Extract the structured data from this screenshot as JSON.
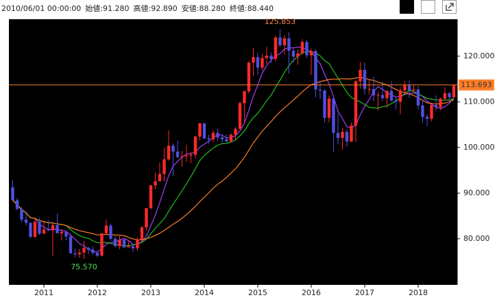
{
  "chart_data": {
    "type": "candlestick",
    "header": {
      "date": "2010/06/01 00:00:00",
      "fields": [
        {
          "label": "始値:",
          "value": "91.280"
        },
        {
          "label": "高値:",
          "value": "92.890"
        },
        {
          "label": "安値:",
          "value": "88.280"
        },
        {
          "label": "終値:",
          "value": "88.440"
        }
      ]
    },
    "open": [
      91.28,
      88.44,
      86.5,
      84.2,
      83.5,
      80.4,
      83.7,
      81.1,
      82.0,
      81.8,
      83.0,
      81.2,
      81.5,
      80.5,
      76.8,
      76.6,
      77.0,
      78.0,
      77.6,
      76.9,
      76.3,
      81.2,
      82.9,
      80.0,
      78.4,
      79.8,
      78.1,
      78.4,
      77.9,
      79.8,
      82.5,
      86.7,
      91.7,
      92.6,
      94.2,
      97.4,
      100.4,
      99.1,
      97.9,
      98.1,
      98.2,
      98.4,
      102.4,
      105.3,
      102.0,
      101.8,
      103.2,
      102.2,
      101.8,
      101.3,
      102.8,
      104.1,
      109.7,
      112.3,
      118.6,
      119.8,
      117.5,
      119.6,
      120.1,
      119.4,
      124.1,
      122.4,
      123.9,
      121.2,
      119.9,
      120.6,
      123.1,
      120.2,
      121.1,
      112.7,
      112.5,
      106.5,
      110.7,
      103.2,
      102.1,
      103.4,
      101.3,
      104.8,
      114.5,
      117.0,
      112.8,
      112.8,
      111.4,
      111.5,
      110.8,
      112.4,
      110.3,
      110.0,
      112.5,
      113.6,
      112.5,
      112.7,
      109.2,
      106.7,
      106.3,
      109.3,
      108.8,
      110.7,
      111.9,
      111.0
    ],
    "high": [
      92.89,
      88.9,
      87.0,
      86.0,
      83.6,
      84.4,
      84.5,
      83.6,
      84.0,
      83.3,
      85.5,
      82.2,
      81.7,
      80.9,
      77.9,
      77.8,
      79.5,
      78.3,
      78.3,
      77.3,
      81.2,
      84.2,
      83.3,
      80.6,
      80.6,
      79.9,
      79.6,
      78.9,
      80.3,
      82.8,
      86.8,
      91.8,
      94.5,
      96.7,
      99.9,
      103.7,
      100.9,
      101.5,
      99.2,
      100.6,
      99.0,
      102.6,
      105.4,
      105.4,
      102.8,
      103.8,
      104.1,
      102.8,
      102.8,
      103.1,
      104.5,
      110.1,
      112.5,
      118.9,
      121.8,
      120.8,
      120.5,
      122.0,
      120.8,
      124.4,
      125.853,
      124.6,
      125.3,
      121.7,
      121.5,
      123.8,
      123.6,
      121.7,
      121.5,
      114.5,
      112.7,
      111.4,
      110.9,
      107.5,
      104.3,
      104.1,
      105.5,
      114.8,
      118.7,
      118.6,
      114.9,
      115.5,
      112.2,
      114.4,
      112.5,
      114.5,
      111.1,
      113.3,
      114.5,
      114.7,
      113.8,
      113.4,
      110.5,
      107.3,
      109.6,
      111.4,
      110.9,
      113.2,
      112.2,
      113.7
    ],
    "low": [
      88.28,
      86.3,
      83.6,
      82.9,
      80.2,
      80.2,
      80.8,
      81.1,
      81.7,
      76.3,
      81.2,
      79.6,
      79.7,
      76.8,
      75.9,
      75.9,
      75.57,
      76.6,
      76.6,
      76.0,
      76.1,
      80.9,
      79.6,
      78.2,
      77.7,
      77.9,
      78.1,
      77.1,
      77.4,
      79.1,
      81.7,
      86.5,
      90.9,
      92.6,
      92.6,
      97.1,
      93.8,
      97.6,
      95.8,
      96.9,
      96.6,
      97.6,
      101.6,
      101.8,
      100.8,
      101.2,
      101.4,
      100.8,
      101.1,
      101.1,
      101.5,
      104.0,
      105.2,
      111.9,
      115.6,
      115.9,
      116.9,
      118.3,
      118.5,
      118.9,
      122.0,
      120.4,
      116.2,
      118.6,
      118.1,
      120.2,
      119.6,
      115.9,
      111.0,
      110.6,
      105.5,
      105.5,
      99.0,
      100.7,
      99.5,
      100.1,
      101.2,
      101.2,
      112.9,
      111.6,
      111.6,
      110.1,
      108.1,
      110.2,
      108.8,
      110.0,
      108.3,
      107.3,
      111.7,
      110.8,
      111.9,
      108.3,
      105.5,
      104.6,
      105.7,
      108.1,
      108.1,
      110.3,
      110.0,
      111.0
    ],
    "close": [
      88.44,
      86.5,
      84.2,
      83.5,
      80.4,
      83.7,
      81.1,
      82.0,
      81.8,
      83.0,
      81.2,
      81.5,
      80.5,
      76.8,
      76.6,
      77.0,
      78.0,
      77.6,
      76.9,
      76.3,
      81.2,
      82.9,
      80.0,
      78.4,
      79.8,
      78.1,
      78.4,
      77.9,
      79.8,
      82.5,
      86.7,
      91.7,
      92.6,
      94.2,
      97.4,
      100.4,
      99.1,
      97.9,
      98.1,
      98.2,
      98.4,
      102.4,
      105.3,
      102.0,
      101.8,
      103.2,
      102.2,
      101.8,
      101.3,
      102.8,
      104.1,
      109.7,
      112.3,
      118.6,
      119.8,
      117.5,
      119.6,
      120.1,
      119.4,
      124.1,
      122.4,
      123.9,
      121.2,
      119.9,
      120.6,
      123.1,
      120.2,
      121.1,
      112.7,
      112.5,
      106.5,
      110.7,
      103.2,
      102.1,
      103.4,
      101.3,
      104.8,
      114.5,
      117.0,
      112.8,
      112.8,
      111.4,
      111.5,
      110.8,
      112.4,
      110.3,
      110.0,
      112.5,
      113.6,
      112.5,
      112.7,
      109.2,
      106.7,
      106.3,
      109.3,
      108.8,
      110.7,
      111.9,
      111.0,
      113.693
    ],
    "up_color": "#ff2a2a",
    "down_color": "#5050e0",
    "moving_averages": [
      {
        "window": 6,
        "color": "#a040ff"
      },
      {
        "window": 13,
        "color": "#20c020"
      },
      {
        "window": 26,
        "color": "#ff7f27"
      }
    ],
    "ylim": [
      69.9,
      128.1
    ],
    "yticks": [
      {
        "value": 80,
        "label": "80.000"
      },
      {
        "value": 90,
        "label": "90.000"
      },
      {
        "value": 100,
        "label": "100.000"
      },
      {
        "value": 110,
        "label": "110.000"
      },
      {
        "value": 120,
        "label": "120.000"
      }
    ],
    "xticks": [
      2011,
      2012,
      2013,
      2014,
      2015,
      2016,
      2017,
      2018
    ],
    "current": {
      "value": 113.693,
      "label": "113.693",
      "color": "#ff7f27"
    },
    "annotations": [
      {
        "value": 125.853,
        "label": "125.853",
        "color": "#ff8c50"
      },
      {
        "value": 75.57,
        "label": "75.570",
        "color": "#50e050"
      }
    ]
  }
}
